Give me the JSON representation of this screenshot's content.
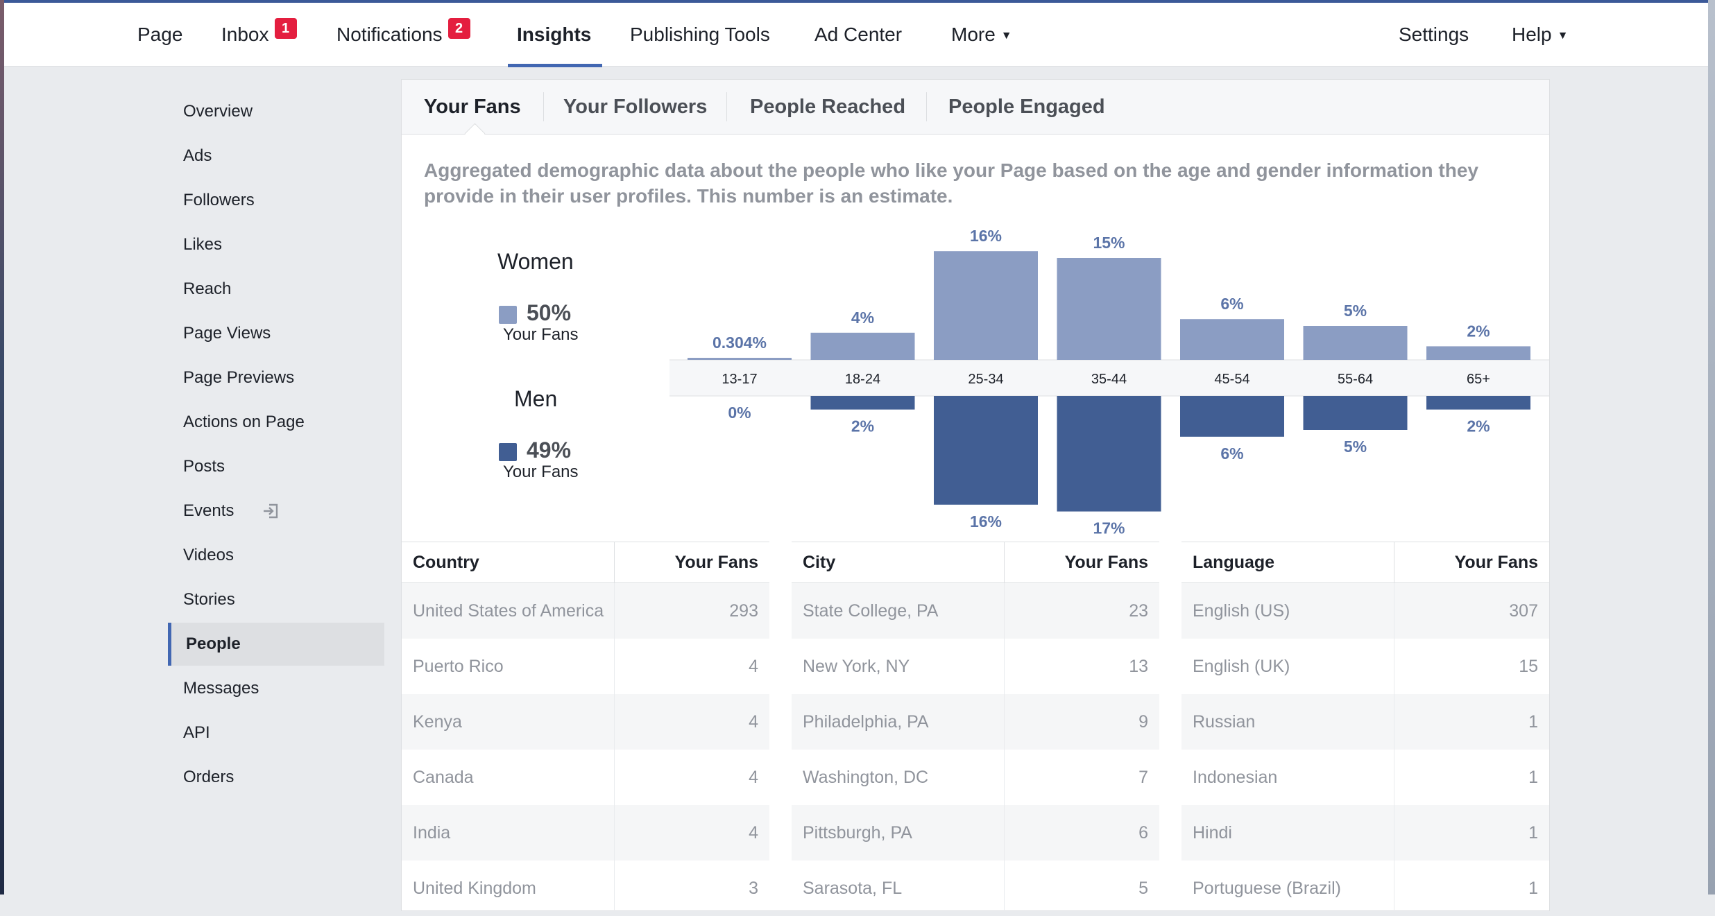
{
  "nav": {
    "items": [
      {
        "label": "Page"
      },
      {
        "label": "Inbox",
        "badge": "1"
      },
      {
        "label": "Notifications",
        "badge": "2"
      },
      {
        "label": "Insights"
      },
      {
        "label": "Publishing Tools"
      },
      {
        "label": "Ad Center"
      },
      {
        "label": "More"
      }
    ],
    "right": [
      {
        "label": "Settings"
      },
      {
        "label": "Help"
      }
    ],
    "active": "Insights"
  },
  "sidebar": {
    "items": [
      {
        "label": "Overview"
      },
      {
        "label": "Ads"
      },
      {
        "label": "Followers"
      },
      {
        "label": "Likes"
      },
      {
        "label": "Reach"
      },
      {
        "label": "Page Views"
      },
      {
        "label": "Page Previews"
      },
      {
        "label": "Actions on Page"
      },
      {
        "label": "Posts"
      },
      {
        "label": "Events",
        "icon": "external-link-icon"
      },
      {
        "label": "Videos"
      },
      {
        "label": "Stories"
      },
      {
        "label": "People"
      },
      {
        "label": "Messages"
      },
      {
        "label": "API"
      },
      {
        "label": "Orders"
      }
    ],
    "active": "People"
  },
  "tabs": [
    "Your Fans",
    "Your Followers",
    "People Reached",
    "People Engaged"
  ],
  "description": "Aggregated demographic data about the people who like your Page based on the age and gender information they provide in their user profiles. This number is an estimate.",
  "legend": {
    "women": {
      "title": "Women",
      "pct": "50%",
      "sub": "Your Fans",
      "color": "#8b9dc3"
    },
    "men": {
      "title": "Men",
      "pct": "49%",
      "sub": "Your Fans",
      "color": "#415e93"
    }
  },
  "chart_data": {
    "type": "bar",
    "categories": [
      "13-17",
      "18-24",
      "25-34",
      "35-44",
      "45-54",
      "55-64",
      "65+"
    ],
    "series": [
      {
        "name": "Women",
        "values": [
          0.304,
          4,
          16,
          15,
          6,
          5,
          2
        ],
        "labels": [
          "0.304%",
          "4%",
          "16%",
          "15%",
          "6%",
          "5%",
          "2%"
        ]
      },
      {
        "name": "Men",
        "values": [
          0,
          2,
          16,
          17,
          6,
          5,
          2
        ],
        "labels": [
          "0%",
          "2%",
          "16%",
          "17%",
          "6%",
          "5%",
          "2%"
        ]
      }
    ]
  },
  "tables": [
    {
      "col1": "Country",
      "col2": "Your Fans",
      "rows": [
        {
          "name": "United States of America",
          "value": "293"
        },
        {
          "name": "Puerto Rico",
          "value": "4"
        },
        {
          "name": "Kenya",
          "value": "4"
        },
        {
          "name": "Canada",
          "value": "4"
        },
        {
          "name": "India",
          "value": "4"
        },
        {
          "name": "United Kingdom",
          "value": "3"
        }
      ]
    },
    {
      "col1": "City",
      "col2": "Your Fans",
      "rows": [
        {
          "name": "State College, PA",
          "value": "23"
        },
        {
          "name": "New York, NY",
          "value": "13"
        },
        {
          "name": "Philadelphia, PA",
          "value": "9"
        },
        {
          "name": "Washington, DC",
          "value": "7"
        },
        {
          "name": "Pittsburgh, PA",
          "value": "6"
        },
        {
          "name": "Sarasota, FL",
          "value": "5"
        }
      ]
    },
    {
      "col1": "Language",
      "col2": "Your Fans",
      "rows": [
        {
          "name": "English (US)",
          "value": "307"
        },
        {
          "name": "English (UK)",
          "value": "15"
        },
        {
          "name": "Russian",
          "value": "1"
        },
        {
          "name": "Indonesian",
          "value": "1"
        },
        {
          "name": "Hindi",
          "value": "1"
        },
        {
          "name": "Portuguese (Brazil)",
          "value": "1"
        }
      ]
    }
  ]
}
